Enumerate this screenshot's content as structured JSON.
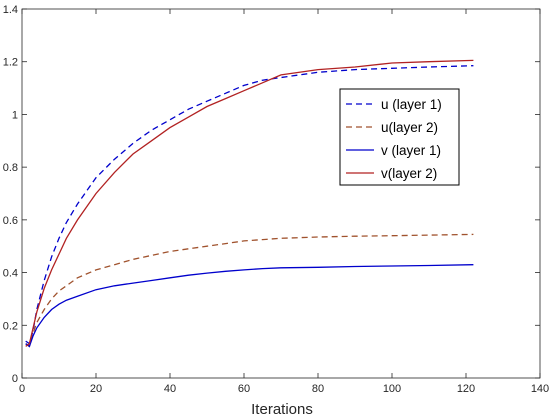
{
  "chart_data": {
    "type": "line",
    "xlabel": "Iterations",
    "ylabel": "",
    "title": "",
    "xlim": [
      0,
      140
    ],
    "ylim": [
      0,
      1.4
    ],
    "xticks": [
      0,
      20,
      40,
      60,
      80,
      100,
      120,
      140
    ],
    "yticks": [
      0,
      0.2,
      0.4,
      0.6,
      0.8,
      1,
      1.2,
      1.4
    ],
    "ytick_labels": [
      "0",
      "0.2",
      "0.4",
      "0.6",
      "0.8",
      "1",
      "1.2",
      "1.4"
    ],
    "grid": false,
    "legend_position": "top-right",
    "series": [
      {
        "name": "u (layer 1)",
        "color": "#0000cc",
        "dash": "dashed",
        "x": [
          1,
          2,
          3,
          4,
          6,
          8,
          10,
          12,
          15,
          20,
          25,
          30,
          35,
          40,
          45,
          50,
          55,
          60,
          65,
          70,
          80,
          90,
          100,
          110,
          122
        ],
        "y": [
          0.14,
          0.13,
          0.18,
          0.26,
          0.37,
          0.46,
          0.53,
          0.59,
          0.66,
          0.76,
          0.83,
          0.89,
          0.94,
          0.98,
          1.02,
          1.05,
          1.08,
          1.11,
          1.13,
          1.14,
          1.16,
          1.17,
          1.175,
          1.18,
          1.185
        ]
      },
      {
        "name": "u(layer 2)",
        "color": "#a0522d",
        "dash": "dashed",
        "x": [
          1,
          2,
          3,
          4,
          6,
          8,
          10,
          12,
          15,
          20,
          25,
          30,
          35,
          40,
          45,
          50,
          55,
          60,
          65,
          70,
          80,
          90,
          100,
          110,
          122
        ],
        "y": [
          0.13,
          0.12,
          0.17,
          0.21,
          0.26,
          0.3,
          0.33,
          0.35,
          0.38,
          0.41,
          0.43,
          0.45,
          0.465,
          0.48,
          0.49,
          0.5,
          0.51,
          0.52,
          0.525,
          0.53,
          0.535,
          0.538,
          0.54,
          0.542,
          0.545
        ]
      },
      {
        "name": "v (layer 1)",
        "color": "#0000cc",
        "dash": "solid",
        "x": [
          1,
          2,
          3,
          4,
          6,
          8,
          10,
          12,
          15,
          20,
          25,
          30,
          35,
          40,
          45,
          50,
          55,
          60,
          65,
          70,
          80,
          90,
          100,
          110,
          122
        ],
        "y": [
          0.13,
          0.12,
          0.16,
          0.19,
          0.23,
          0.26,
          0.28,
          0.295,
          0.31,
          0.335,
          0.35,
          0.36,
          0.37,
          0.38,
          0.39,
          0.398,
          0.405,
          0.41,
          0.415,
          0.418,
          0.42,
          0.423,
          0.425,
          0.427,
          0.43
        ]
      },
      {
        "name": "v(layer 2)",
        "color": "#b22222",
        "dash": "solid",
        "x": [
          1,
          2,
          3,
          4,
          6,
          8,
          10,
          12,
          15,
          20,
          25,
          30,
          35,
          40,
          45,
          50,
          55,
          60,
          65,
          70,
          80,
          90,
          100,
          110,
          122
        ],
        "y": [
          0.12,
          0.13,
          0.19,
          0.25,
          0.34,
          0.41,
          0.47,
          0.53,
          0.6,
          0.7,
          0.78,
          0.85,
          0.9,
          0.95,
          0.99,
          1.03,
          1.06,
          1.09,
          1.12,
          1.15,
          1.17,
          1.18,
          1.195,
          1.2,
          1.205
        ]
      }
    ]
  }
}
